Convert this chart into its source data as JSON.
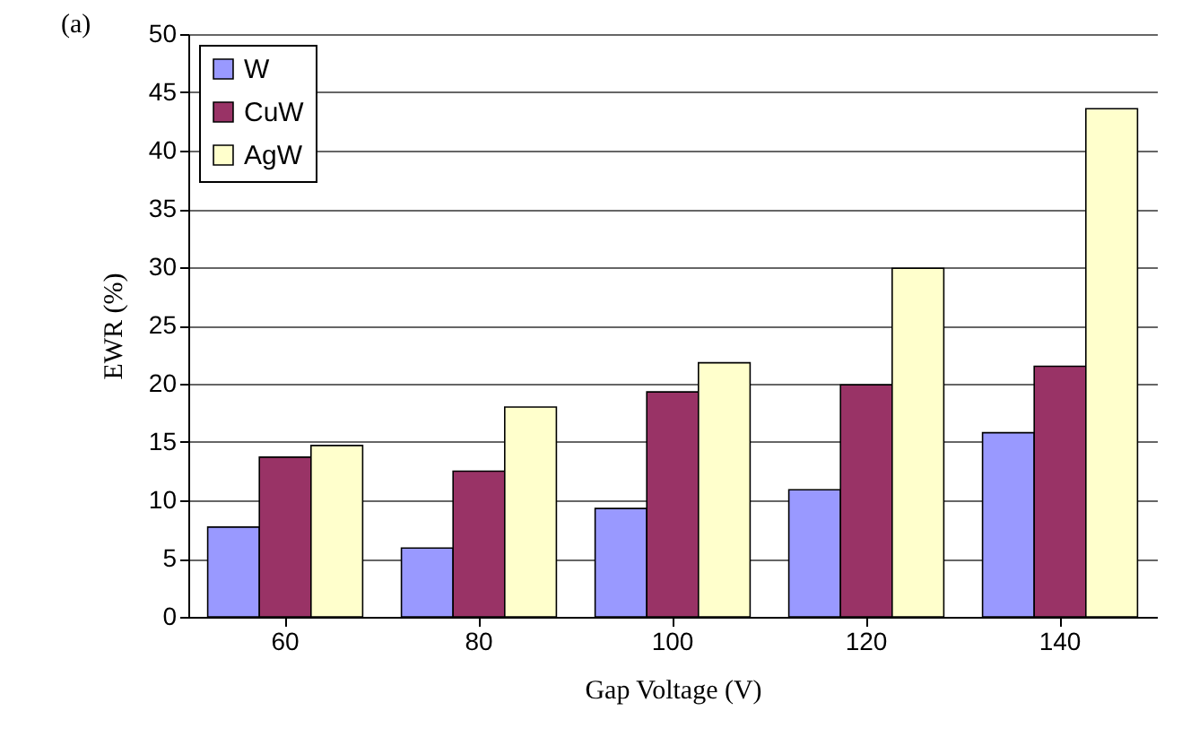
{
  "chart_data": {
    "type": "bar",
    "xlabel": "Gap Voltage (V)",
    "ylabel": "EWR (%)",
    "annotations": [
      "(a)"
    ],
    "categories": [
      "60",
      "80",
      "100",
      "120",
      "140"
    ],
    "series": [
      {
        "name": "W",
        "color": "#9999ff",
        "values": [
          7.7,
          5.9,
          9.3,
          10.9,
          15.8
        ]
      },
      {
        "name": "CuW",
        "color": "#993366",
        "values": [
          13.7,
          12.5,
          19.3,
          19.9,
          21.5
        ]
      },
      {
        "name": "AgW",
        "color": "#ffffcc",
        "values": [
          14.7,
          18.0,
          21.8,
          29.9,
          43.6
        ]
      }
    ],
    "ylim": [
      0,
      50
    ],
    "yticks": [
      0,
      5,
      10,
      15,
      20,
      25,
      30,
      35,
      40,
      45,
      50
    ],
    "grid": "y",
    "legend": "top left"
  }
}
